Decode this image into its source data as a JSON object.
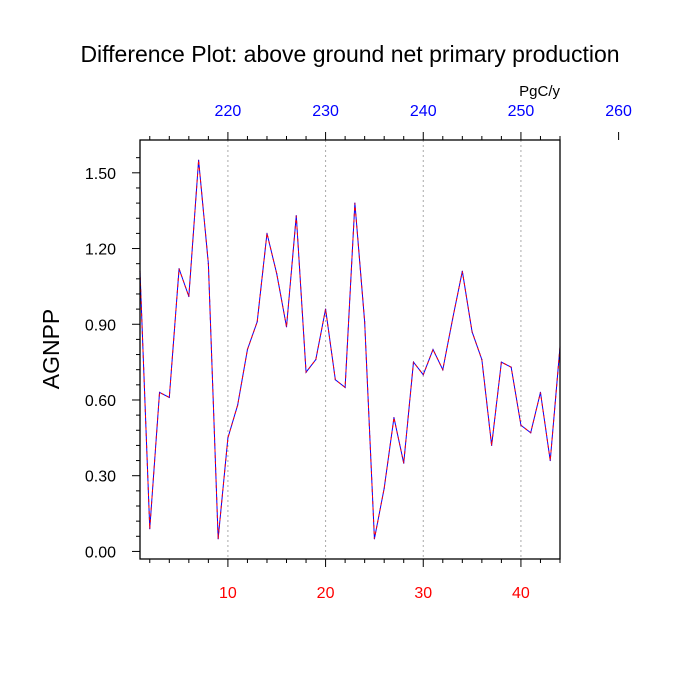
{
  "chart_data": {
    "type": "line",
    "title": "Difference Plot: above ground net primary production",
    "units": "PgC/y",
    "ylabel": "AGNPP",
    "xlabel": "",
    "xlim": [
      1,
      44
    ],
    "ylim": [
      -0.03,
      1.63
    ],
    "yticks": [
      "0.00",
      "0.30",
      "0.60",
      "0.90",
      "1.20",
      "1.50"
    ],
    "bottom_xticks": [
      "10",
      "20",
      "30",
      "40"
    ],
    "top_xticks": [
      "220",
      "230",
      "240",
      "250",
      "260"
    ],
    "top_axis_offset": 210,
    "grid": "dashed vertical lines at bottom x ticks",
    "colors": {
      "series_a": "#0000ff",
      "series_b": "#ff0000",
      "bottom_ticks": "#ff0000",
      "top_ticks": "#0000ff"
    },
    "x": [
      1,
      2,
      3,
      4,
      5,
      6,
      7,
      8,
      9,
      10,
      11,
      12,
      13,
      14,
      15,
      16,
      17,
      18,
      19,
      20,
      21,
      22,
      23,
      24,
      25,
      26,
      27,
      28,
      29,
      30,
      31,
      32,
      33,
      34,
      35,
      36,
      37,
      38,
      39,
      40,
      41,
      42,
      43,
      44
    ],
    "series": [
      {
        "values": [
          1.11,
          0.09,
          0.63,
          0.61,
          1.12,
          1.01,
          1.55,
          1.14,
          0.05,
          0.45,
          0.58,
          0.8,
          0.91,
          1.26,
          1.1,
          0.89,
          1.33,
          0.71,
          0.76,
          0.96,
          0.68,
          0.65,
          1.38,
          0.91,
          0.05,
          0.25,
          0.53,
          0.35,
          0.75,
          0.7,
          0.8,
          0.72,
          0.92,
          1.11,
          0.87,
          0.76,
          0.42,
          0.75,
          0.73,
          0.5,
          0.47,
          0.63,
          0.36,
          0.81
        ]
      }
    ]
  }
}
